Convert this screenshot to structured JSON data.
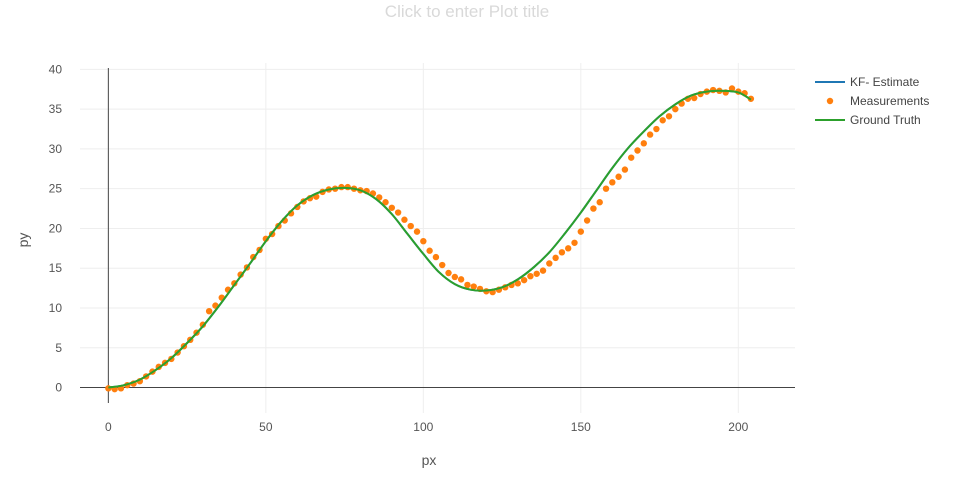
{
  "chart_data": {
    "type": "line",
    "title": "Click to enter Plot title",
    "xlabel": "px",
    "ylabel": "py",
    "xlim": [
      -9,
      218
    ],
    "ylim": [
      -3.2,
      40.8
    ],
    "xticks": [
      0,
      50,
      100,
      150,
      200
    ],
    "yticks": [
      0,
      5,
      10,
      15,
      20,
      25,
      30,
      35,
      40
    ],
    "grid": true,
    "legend_position": "top-right",
    "colors": {
      "kf": "#1f77b4",
      "measurements": "#ff7f0e",
      "ground_truth": "#2ca02c"
    },
    "series": [
      {
        "name": "KF- Estimate",
        "kind": "line",
        "x": [
          0,
          5,
          10,
          15,
          20,
          25,
          30,
          35,
          40,
          45,
          50,
          55,
          60,
          65,
          70,
          75,
          80,
          85,
          90,
          95,
          100,
          105,
          110,
          115,
          120,
          125,
          130,
          135,
          140,
          145,
          150,
          155,
          160,
          165,
          170,
          175,
          180,
          185,
          190,
          195,
          200,
          204
        ],
        "y": [
          0,
          0.3,
          1.0,
          2.2,
          3.7,
          5.6,
          7.7,
          10.2,
          12.9,
          15.6,
          18.4,
          20.9,
          22.9,
          24.2,
          24.9,
          25.1,
          24.8,
          23.7,
          21.8,
          19.3,
          16.8,
          14.5,
          13.0,
          12.3,
          12.2,
          12.6,
          13.6,
          15.1,
          17.0,
          19.4,
          22.0,
          24.8,
          27.6,
          30.1,
          32.2,
          34.1,
          35.6,
          36.7,
          37.2,
          37.3,
          37.1,
          36.2
        ]
      },
      {
        "name": "Measurements",
        "kind": "markers",
        "x": [
          0,
          2,
          4,
          6,
          8,
          10,
          12,
          14,
          16,
          18,
          20,
          22,
          24,
          26,
          28,
          30,
          32,
          34,
          36,
          38,
          40,
          42,
          44,
          46,
          48,
          50,
          52,
          54,
          56,
          58,
          60,
          62,
          64,
          66,
          68,
          70,
          72,
          74,
          76,
          78,
          80,
          82,
          84,
          86,
          88,
          90,
          92,
          94,
          96,
          98,
          100,
          102,
          104,
          106,
          108,
          110,
          112,
          114,
          116,
          118,
          120,
          122,
          124,
          126,
          128,
          130,
          132,
          134,
          136,
          138,
          140,
          142,
          144,
          146,
          148,
          150,
          152,
          154,
          156,
          158,
          160,
          162,
          164,
          166,
          168,
          170,
          172,
          174,
          176,
          178,
          180,
          182,
          184,
          186,
          188,
          190,
          192,
          194,
          196,
          198,
          200,
          202,
          204
        ],
        "y": [
          -0.1,
          -0.2,
          -0.1,
          0.3,
          0.5,
          0.8,
          1.4,
          2.0,
          2.6,
          3.1,
          3.6,
          4.4,
          5.2,
          6.0,
          6.9,
          7.9,
          9.6,
          10.3,
          11.3,
          12.3,
          13.1,
          14.2,
          15.1,
          16.4,
          17.3,
          18.7,
          19.3,
          20.3,
          21.0,
          21.9,
          22.7,
          23.4,
          23.8,
          24.0,
          24.6,
          24.9,
          25.0,
          25.2,
          25.2,
          25.0,
          24.8,
          24.7,
          24.4,
          23.9,
          23.3,
          22.6,
          22.0,
          21.1,
          20.3,
          19.6,
          18.4,
          17.2,
          16.4,
          15.4,
          14.4,
          13.9,
          13.6,
          12.9,
          12.7,
          12.4,
          12.1,
          12.0,
          12.3,
          12.6,
          12.9,
          13.1,
          13.5,
          14.0,
          14.3,
          14.7,
          15.6,
          16.3,
          17.0,
          17.5,
          18.2,
          19.6,
          21.0,
          22.5,
          23.3,
          25.0,
          25.8,
          26.5,
          27.4,
          28.9,
          29.8,
          30.7,
          31.8,
          32.5,
          33.6,
          34.1,
          35.0,
          35.7,
          36.3,
          36.4,
          36.9,
          37.2,
          37.4,
          37.3,
          37.1,
          37.6,
          37.2,
          37.0,
          36.3
        ]
      },
      {
        "name": "Ground Truth",
        "kind": "line",
        "x": [
          0,
          5,
          10,
          15,
          20,
          25,
          30,
          35,
          40,
          45,
          50,
          55,
          60,
          65,
          70,
          75,
          80,
          85,
          90,
          95,
          100,
          105,
          110,
          115,
          120,
          125,
          130,
          135,
          140,
          145,
          150,
          155,
          160,
          165,
          170,
          175,
          180,
          185,
          190,
          195,
          200,
          204
        ],
        "y": [
          0,
          0.3,
          1.0,
          2.2,
          3.7,
          5.6,
          7.7,
          10.2,
          12.9,
          15.6,
          18.4,
          20.9,
          22.9,
          24.2,
          24.9,
          25.1,
          24.8,
          23.7,
          21.8,
          19.3,
          16.8,
          14.5,
          13.0,
          12.3,
          12.2,
          12.6,
          13.6,
          15.1,
          17.0,
          19.4,
          22.0,
          24.8,
          27.6,
          30.1,
          32.2,
          34.1,
          35.6,
          36.7,
          37.2,
          37.3,
          37.1,
          36.2
        ]
      }
    ]
  }
}
